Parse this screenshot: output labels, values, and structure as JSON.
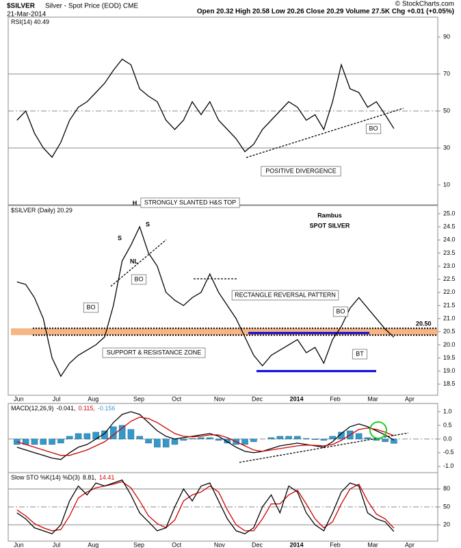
{
  "header": {
    "symbol": "$SILVER",
    "name": "Silver - Spot Price (EOD) CME",
    "date": "21-Mar-2014",
    "quote": "Open 20.32 High 20.58 Low 20.26 Close 20.29 Volume 27.5K Chg +0.01 (+0.05%)",
    "credit": "© StockCharts.com"
  },
  "chart_data": [
    {
      "type": "line",
      "legend": [
        {
          "text": "RSI(14) 40.49",
          "color": "#000000"
        }
      ],
      "x": [
        0,
        1,
        2,
        3,
        4,
        5,
        6,
        7,
        8,
        9,
        10,
        11,
        12,
        13,
        14,
        15,
        16,
        17,
        18,
        19,
        20,
        21,
        22,
        23,
        24,
        25,
        26,
        27,
        28,
        29,
        30,
        31,
        32,
        33,
        34,
        35,
        36,
        37,
        38,
        39,
        40,
        41,
        42,
        43
      ],
      "xlim": [
        -1,
        48
      ],
      "ylim": [
        0,
        100
      ],
      "yticks": [
        10,
        30,
        50,
        70,
        90
      ],
      "hlines": [
        30,
        50,
        70
      ],
      "series": [
        {
          "color": "#000000",
          "values": [
            45,
            50,
            38,
            30,
            25,
            33,
            45,
            52,
            55,
            60,
            65,
            72,
            78,
            75,
            62,
            58,
            55,
            45,
            40,
            45,
            55,
            48,
            55,
            45,
            40,
            35,
            28,
            32,
            40,
            45,
            50,
            55,
            52,
            45,
            48,
            40,
            55,
            75,
            62,
            60,
            52,
            55,
            48,
            40.49
          ]
        }
      ],
      "annotations": [
        {
          "text": "BO",
          "color": "#0000cc"
        },
        {
          "text": "POSITIVE DIVERGENCE",
          "color": "#000000"
        }
      ]
    },
    {
      "type": "line",
      "legend": [
        {
          "text": "$SILVER (Daily) 20.29",
          "color": "#000000"
        }
      ],
      "x": [
        0,
        1,
        2,
        3,
        4,
        5,
        6,
        7,
        8,
        9,
        10,
        11,
        12,
        13,
        14,
        15,
        16,
        17,
        18,
        19,
        20,
        21,
        22,
        23,
        24,
        25,
        26,
        27,
        28,
        29,
        30,
        31,
        32,
        33,
        34,
        35,
        36,
        37,
        38,
        39,
        40,
        41,
        42,
        43
      ],
      "xlim": [
        -1,
        48
      ],
      "ylim": [
        18.13,
        25.26
      ],
      "yticks": [
        18.5,
        {
          "value": 19,
          "label": "19.0"
        },
        19.5,
        {
          "value": 20,
          "label": "20.0"
        },
        20.5,
        {
          "value": 21,
          "label": "21.0"
        },
        21.5,
        {
          "value": 22,
          "label": "22.0"
        },
        22.5,
        {
          "value": 23,
          "label": "23.0"
        },
        23.5,
        {
          "value": 24,
          "label": "24.0"
        },
        24.5,
        {
          "value": 25,
          "label": "25.0"
        }
      ],
      "xticks": [
        {
          "value": 0.2,
          "label": "Jun"
        },
        {
          "value": 4.5,
          "label": "Jul"
        },
        {
          "value": 8.7,
          "label": "Aug"
        },
        {
          "value": 13.9,
          "label": "Sep"
        },
        {
          "value": 18.2,
          "label": "Oct"
        },
        {
          "value": 23.1,
          "label": "Nov"
        },
        {
          "value": 27.4,
          "label": "Dec"
        },
        {
          "value": 31.9,
          "label": "2014"
        },
        {
          "value": 36.3,
          "label": "Feb"
        },
        {
          "value": 40.6,
          "label": "Mar"
        },
        {
          "value": 44.8,
          "label": "Apr"
        }
      ],
      "support_level": {
        "value": 20.5,
        "label": "20.50"
      },
      "rectangle": [
        19.0,
        20.45
      ],
      "series": [
        {
          "color": "#000000",
          "values": [
            22.4,
            22.3,
            21.8,
            21.0,
            19.5,
            18.8,
            19.3,
            19.6,
            19.8,
            20.0,
            20.3,
            21.5,
            23.2,
            23.8,
            24.5,
            23.5,
            23.0,
            22.0,
            21.7,
            21.5,
            21.8,
            22.0,
            22.7,
            22.0,
            21.5,
            21.0,
            20.3,
            19.6,
            19.2,
            19.6,
            19.8,
            20.0,
            20.2,
            19.7,
            19.9,
            19.3,
            20.2,
            20.7,
            21.4,
            21.8,
            21.4,
            21.0,
            20.6,
            20.29
          ]
        }
      ],
      "annotations": [
        {
          "text": "STRONGLY SLANTED H&S TOP",
          "color": "#000000"
        },
        {
          "text": "H",
          "color": "#000000"
        },
        {
          "text": "S",
          "color": "#000000"
        },
        {
          "text": "S",
          "color": "#000000"
        },
        {
          "text": "NL",
          "color": "#000000"
        },
        {
          "text": "BO",
          "color": "#0000cc"
        },
        {
          "text": "BO",
          "color": "#0000cc"
        },
        {
          "text": "SUPPORT & RESISTANCE ZONE",
          "color": "#000000"
        },
        {
          "text": "RECTANGLE REVERSAL PATTERN",
          "color": "#0000cc"
        },
        {
          "text": "BO",
          "color": "#0000cc"
        },
        {
          "text": "BT",
          "color": "#0000cc"
        },
        {
          "text": "Rambus",
          "color": "#000000"
        },
        {
          "text": "SPOT SILVER",
          "color": "#000000"
        }
      ]
    },
    {
      "type": "line",
      "legend": [
        {
          "text": "MACD(12,26,9)",
          "color": "#000000"
        },
        {
          "text": "-0.041,",
          "color": "#000000"
        },
        {
          "text": "0.115,",
          "color": "#cc0000"
        },
        {
          "text": "-0.156",
          "color": "#3399cc"
        }
      ],
      "x": [
        0,
        1,
        2,
        3,
        4,
        5,
        6,
        7,
        8,
        9,
        10,
        11,
        12,
        13,
        14,
        15,
        16,
        17,
        18,
        19,
        20,
        21,
        22,
        23,
        24,
        25,
        26,
        27,
        28,
        29,
        30,
        31,
        32,
        33,
        34,
        35,
        36,
        37,
        38,
        39,
        40,
        41,
        42,
        43
      ],
      "xlim": [
        -1,
        48
      ],
      "ylim": [
        -1.18,
        1.25
      ],
      "yticks": [
        {
          "value": -1,
          "label": "-1.0"
        },
        -0.5,
        {
          "value": 0,
          "label": "0.0"
        },
        0.5,
        {
          "value": 1,
          "label": "1.0"
        }
      ],
      "hlines": [
        0
      ],
      "series": [
        {
          "type": "bar",
          "color": "#3399cc",
          "values": [
            -0.2,
            -0.2,
            -0.2,
            -0.2,
            -0.2,
            -0.15,
            0.1,
            0.2,
            0.2,
            0.25,
            0.3,
            0.45,
            0.5,
            0.35,
            0.1,
            -0.15,
            -0.3,
            -0.3,
            -0.2,
            -0.05,
            0.02,
            0.05,
            0.05,
            -0.05,
            -0.15,
            -0.2,
            -0.2,
            -0.1,
            0.0,
            0.05,
            0.1,
            0.1,
            0.1,
            0.02,
            -0.02,
            -0.05,
            0.1,
            0.25,
            0.3,
            0.2,
            0.05,
            -0.05,
            -0.1,
            -0.16
          ]
        },
        {
          "color": "#000000",
          "values": [
            -0.3,
            -0.4,
            -0.5,
            -0.6,
            -0.7,
            -0.75,
            -0.5,
            -0.3,
            -0.2,
            0.0,
            0.2,
            0.6,
            0.9,
            1.0,
            0.9,
            0.6,
            0.3,
            0.1,
            0.0,
            0.05,
            0.1,
            0.15,
            0.2,
            0.1,
            -0.1,
            -0.3,
            -0.45,
            -0.5,
            -0.45,
            -0.35,
            -0.25,
            -0.2,
            -0.15,
            -0.2,
            -0.25,
            -0.3,
            -0.1,
            0.2,
            0.45,
            0.55,
            0.45,
            0.3,
            0.15,
            -0.04
          ]
        },
        {
          "color": "#cc0000",
          "values": [
            -0.1,
            -0.2,
            -0.3,
            -0.4,
            -0.5,
            -0.6,
            -0.6,
            -0.5,
            -0.4,
            -0.25,
            -0.1,
            0.15,
            0.4,
            0.65,
            0.8,
            0.75,
            0.6,
            0.4,
            0.2,
            0.1,
            0.08,
            0.1,
            0.15,
            0.15,
            0.05,
            -0.1,
            -0.25,
            -0.4,
            -0.45,
            -0.4,
            -0.35,
            -0.3,
            -0.25,
            -0.22,
            -0.23,
            -0.25,
            -0.2,
            -0.05,
            0.15,
            0.35,
            0.4,
            0.35,
            0.25,
            0.12
          ]
        }
      ]
    },
    {
      "type": "line",
      "legend": [
        {
          "text": "Slow STO %K(14) %D(3)",
          "color": "#000000"
        },
        {
          "text": "8.81,",
          "color": "#000000"
        },
        {
          "text": "14.41",
          "color": "#cc0000"
        }
      ],
      "x": [
        0,
        1,
        2,
        3,
        4,
        5,
        6,
        7,
        8,
        9,
        10,
        11,
        12,
        13,
        14,
        15,
        16,
        17,
        18,
        19,
        20,
        21,
        22,
        23,
        24,
        25,
        26,
        27,
        28,
        29,
        30,
        31,
        32,
        33,
        34,
        35,
        36,
        37,
        38,
        39,
        40,
        41,
        42,
        43
      ],
      "xlim": [
        -1,
        48
      ],
      "ylim": [
        -5,
        105
      ],
      "yticks": [
        20,
        50,
        80
      ],
      "hlines": [
        20,
        50,
        80
      ],
      "xticks": [
        {
          "value": 0.2,
          "label": "Jun"
        },
        {
          "value": 4.5,
          "label": "Jul"
        },
        {
          "value": 8.7,
          "label": "Aug"
        },
        {
          "value": 13.9,
          "label": "Sep"
        },
        {
          "value": 18.2,
          "label": "Oct"
        },
        {
          "value": 23.1,
          "label": "Nov"
        },
        {
          "value": 27.4,
          "label": "Dec"
        },
        {
          "value": 31.9,
          "label": "2014"
        },
        {
          "value": 36.3,
          "label": "Feb"
        },
        {
          "value": 40.6,
          "label": "Mar"
        },
        {
          "value": 44.8,
          "label": "Apr"
        }
      ],
      "series": [
        {
          "color": "#cc0000",
          "values": [
            45,
            35,
            22,
            15,
            10,
            12,
            35,
            65,
            75,
            82,
            85,
            88,
            92,
            82,
            60,
            35,
            22,
            15,
            28,
            60,
            70,
            75,
            85,
            75,
            45,
            20,
            10,
            10,
            30,
            55,
            55,
            70,
            78,
            55,
            30,
            15,
            25,
            55,
            80,
            88,
            60,
            38,
            30,
            14.41
          ]
        },
        {
          "color": "#000000",
          "values": [
            40,
            30,
            15,
            10,
            5,
            20,
            60,
            85,
            70,
            90,
            85,
            90,
            95,
            70,
            40,
            25,
            10,
            15,
            50,
            80,
            60,
            85,
            90,
            60,
            30,
            10,
            5,
            15,
            50,
            70,
            40,
            85,
            75,
            40,
            20,
            10,
            40,
            75,
            90,
            85,
            40,
            30,
            25,
            8.81
          ]
        }
      ]
    }
  ]
}
